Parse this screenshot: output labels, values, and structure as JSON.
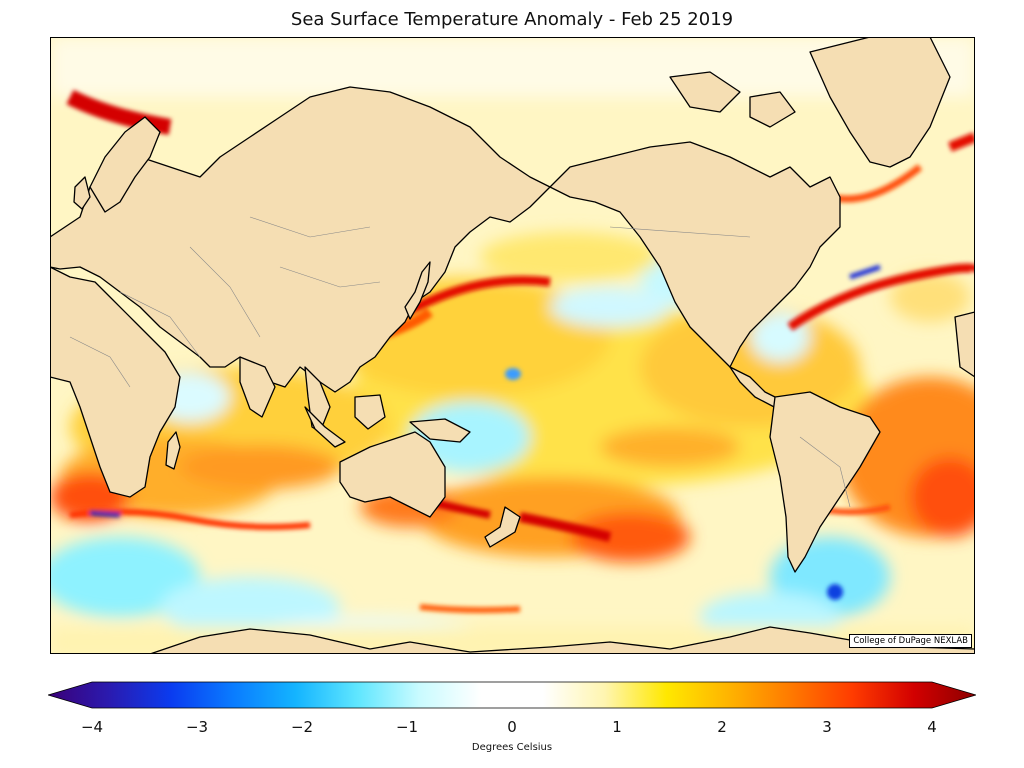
{
  "title": "Sea Surface Temperature Anomaly - Feb 25 2019",
  "credit": "College of DuPage NEXLAB",
  "colorbar": {
    "label": "Degrees Celsius",
    "ticks": [
      "−4",
      "−3",
      "−2",
      "−1",
      "0",
      "1",
      "2",
      "3",
      "4"
    ],
    "min": -4,
    "max": 4,
    "colors": [
      "#3b0078",
      "#2a1bb0",
      "#0a3cf0",
      "#0a7cff",
      "#14b4ff",
      "#5fe6ff",
      "#c9fbff",
      "#ffffff",
      "#ffffff",
      "#fff5b0",
      "#ffe800",
      "#ffb400",
      "#ff7a00",
      "#ff3c00",
      "#d20000",
      "#8c0000"
    ]
  },
  "map": {
    "projection": "Mercator, Pacific-centered",
    "land_color": "#f5deb3",
    "ocean_features": [
      {
        "name": "equatorial-pacific-warm-band",
        "anomaly": 1.5
      },
      {
        "name": "southern-ocean-warm-band",
        "anomaly": 2.5
      },
      {
        "name": "kuroshio-warm-streak",
        "anomaly": 3.0
      },
      {
        "name": "gulf-stream-warm-streak",
        "anomaly": 3.5
      },
      {
        "name": "southeast-pacific-cool-patch",
        "anomaly": -1.0
      },
      {
        "name": "south-atlantic-cool-patch",
        "anomaly": -1.5
      }
    ]
  }
}
